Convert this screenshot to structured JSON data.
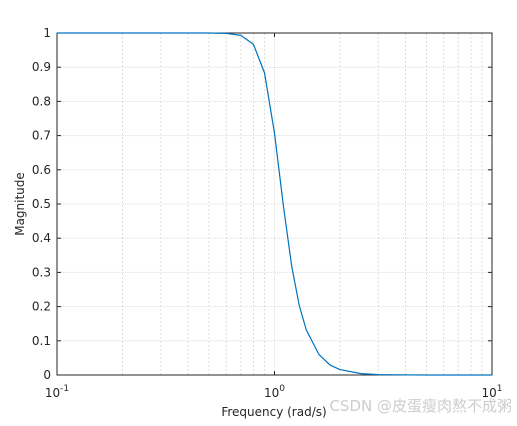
{
  "chart_data": {
    "type": "line",
    "xlabel": "Frequency (rad/s)",
    "ylabel": "Magnitude",
    "xscale": "log",
    "grid": true,
    "minor_grid": true,
    "xlim": [
      0.1,
      10
    ],
    "ylim": [
      0,
      1
    ],
    "xticks": [
      {
        "value": 0.1,
        "label": "10",
        "exponent": "-1"
      },
      {
        "value": 1,
        "label": "10",
        "exponent": "0"
      },
      {
        "value": 10,
        "label": "10",
        "exponent": "1"
      }
    ],
    "yticks": [
      0,
      0.1,
      0.2,
      0.3,
      0.4,
      0.5,
      0.6,
      0.7,
      0.8,
      0.9,
      1
    ],
    "series": [
      {
        "color": "#0072bd",
        "x": [
          0.1,
          0.3,
          0.5,
          0.6,
          0.7,
          0.8,
          0.9,
          1.0,
          1.1,
          1.2,
          1.3,
          1.4,
          1.6,
          1.8,
          2.0,
          2.5,
          3.0,
          5.0,
          10
        ],
        "values": [
          1,
          1,
          1,
          0.999,
          0.993,
          0.967,
          0.883,
          0.707,
          0.492,
          0.318,
          0.203,
          0.132,
          0.06,
          0.029,
          0.016,
          0.004,
          0.001,
          0,
          0
        ]
      }
    ]
  },
  "watermark": "CSDN @皮蛋瘦肉熬不成粥"
}
